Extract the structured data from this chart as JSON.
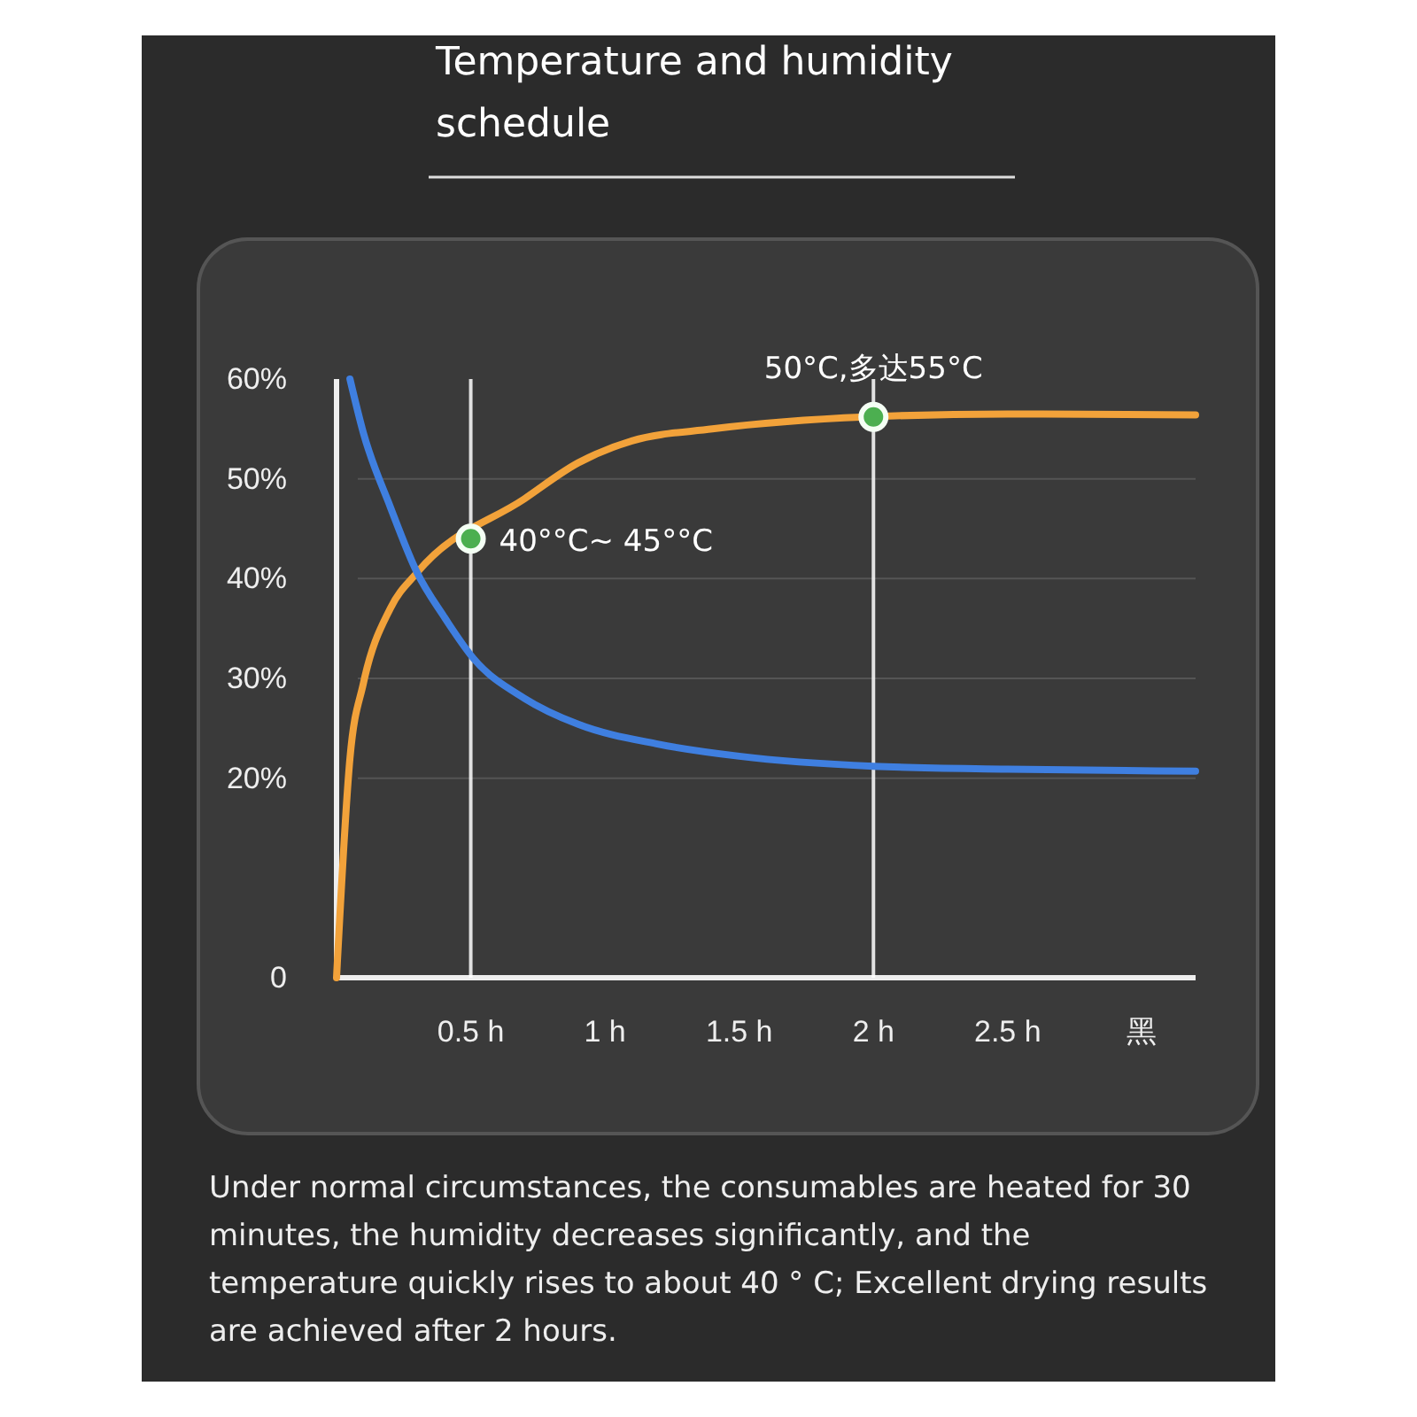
{
  "chart_data": {
    "type": "line",
    "title": "Temperature and humidity schedule",
    "x": [
      0,
      0.05,
      0.1,
      0.2,
      0.3,
      0.51,
      0.7,
      0.9,
      1.1,
      1.4,
      1.97,
      2.5,
      3.2
    ],
    "series": [
      {
        "color": "#f2a23a",
        "values": [
          0,
          22,
          29.5,
          37,
          40.6,
          null,
          48,
          51.6,
          53.8,
          55,
          56.2,
          56.5,
          56.4
        ]
      },
      {
        "color": "#3f7fe0",
        "x": [
          0.05,
          0.1,
          0.2,
          0.3,
          0.4,
          0.51,
          0.7,
          0.9,
          1.2,
          1.5,
          2,
          2.5,
          3.2
        ],
        "values": [
          60,
          54.6,
          47.2,
          40.6,
          36.2,
          32,
          28,
          25.4,
          23.4,
          22.2,
          21.2,
          20.9,
          20.7
        ]
      },
      {
        "type": "scatter",
        "marker": "circle",
        "color": "#4caf50",
        "x": [
          0.5,
          2
        ],
        "values": [
          44,
          56.2
        ]
      }
    ],
    "xlim": [
      0,
      3.2
    ],
    "xticks": [
      {
        "value": 0.5,
        "label": "0.5 h"
      },
      {
        "value": 1,
        "label": "1 h"
      },
      {
        "value": 1.5,
        "label": "1.5 h"
      },
      {
        "value": 2,
        "label": "2 h"
      },
      {
        "value": 2.5,
        "label": "2.5 h"
      },
      {
        "value": 3,
        "label": "黑"
      }
    ],
    "ylim": [
      0,
      60
    ],
    "yticks": [
      0,
      {
        "value": 20,
        "label": "20%"
      },
      {
        "value": 30,
        "label": "30%"
      },
      {
        "value": 40,
        "label": "40%"
      },
      {
        "value": 50,
        "label": "50%"
      },
      {
        "value": 60,
        "label": "60%"
      }
    ],
    "grid": "y",
    "line_style": "solid",
    "ref_lines": [
      {
        "axis": "x",
        "value": 0.5,
        "color": "#ffffff"
      },
      {
        "axis": "x",
        "value": 2,
        "color": "#ffffff"
      }
    ],
    "annotations": [
      {
        "text": "40°°C~ 45°°C",
        "x": 0.5,
        "y": 44
      },
      {
        "text": "50°C,多达55°C",
        "x": 2,
        "y": 56.2
      },
      "Under normal circumstances, the consumables are heated for 30 minutes, the humidity decreases significantly, and the temperature quickly rises to about 40 ° C; Excellent drying results are achieved after 2 hours."
    ]
  }
}
